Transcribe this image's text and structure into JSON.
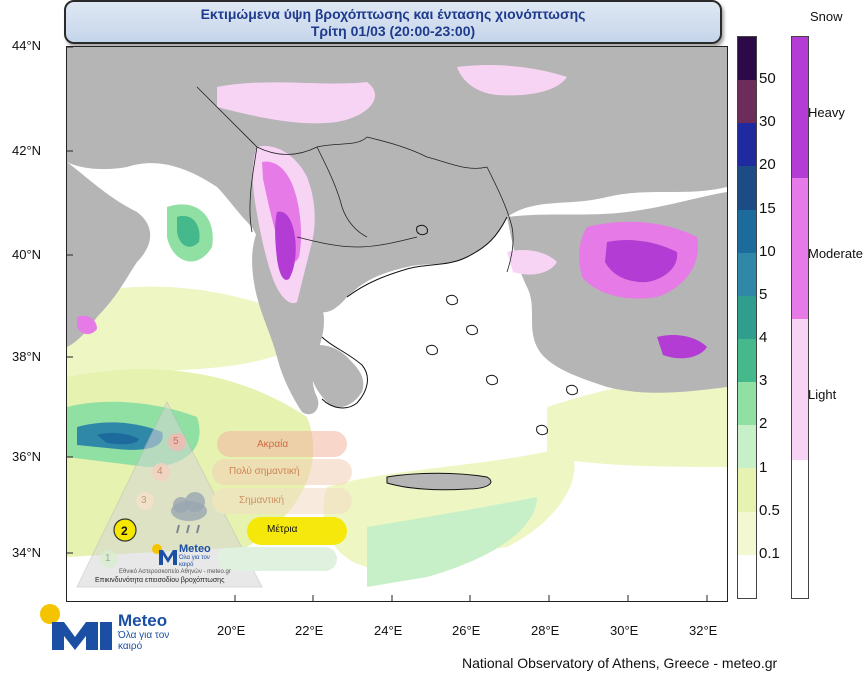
{
  "title": {
    "line1": "Εκτιμώμενα ύψη βροχόπτωσης και έντασης χιονόπτωσης",
    "line2": "Τρίτη 01/03 (20:00-23:00)"
  },
  "lat_ticks": [
    "44°N",
    "42°N",
    "40°N",
    "38°N",
    "36°N",
    "34°N"
  ],
  "lon_ticks": [
    "20°E",
    "22°E",
    "24°E",
    "26°E",
    "28°E",
    "30°E",
    "32°E"
  ],
  "rain_scale": {
    "labels": [
      "50",
      "30",
      "20",
      "15",
      "10",
      "5",
      "4",
      "3",
      "2",
      "1",
      "0.5",
      "0.1"
    ],
    "colors": [
      "#2c0a48",
      "#6e2c5a",
      "#1f2aa0",
      "#1b4c86",
      "#1d6a9c",
      "#2f88a8",
      "#2f9e8c",
      "#45b98c",
      "#8fe0a2",
      "#c8f0c8",
      "#e6f2b0",
      "#f4f8d2",
      "#ffffff"
    ]
  },
  "snow_scale": {
    "title": "Snow",
    "labels": [
      "Heavy",
      "Moderate",
      "Light"
    ],
    "colors": [
      "#b23cd4",
      "#e67ae6",
      "#f8d4f4",
      "#ffffff"
    ]
  },
  "overlay": {
    "levels": [
      "Ακραία",
      "Πολύ σημαντική",
      "Σημαντική",
      "Μέτρια"
    ],
    "level_numbers": [
      "5",
      "4",
      "3",
      "2",
      "1"
    ],
    "active_level": "2",
    "logo_text": "Meteo",
    "logo_sub": "Όλα για τον καιρό",
    "org_text": "Εθνικό Αστεροσκοπείο Αθηνών - meteo.gr",
    "caption": "Επικινδυνότητα επεισοδίου βροχόπτωσης"
  },
  "logo": {
    "text": "Meteo",
    "sub": "Όλα για τον καιρό",
    "colors": {
      "sun": "#f5c400",
      "brand": "#1b4fa3"
    }
  },
  "footer": "National Observatory of Athens, Greece - meteo.gr"
}
